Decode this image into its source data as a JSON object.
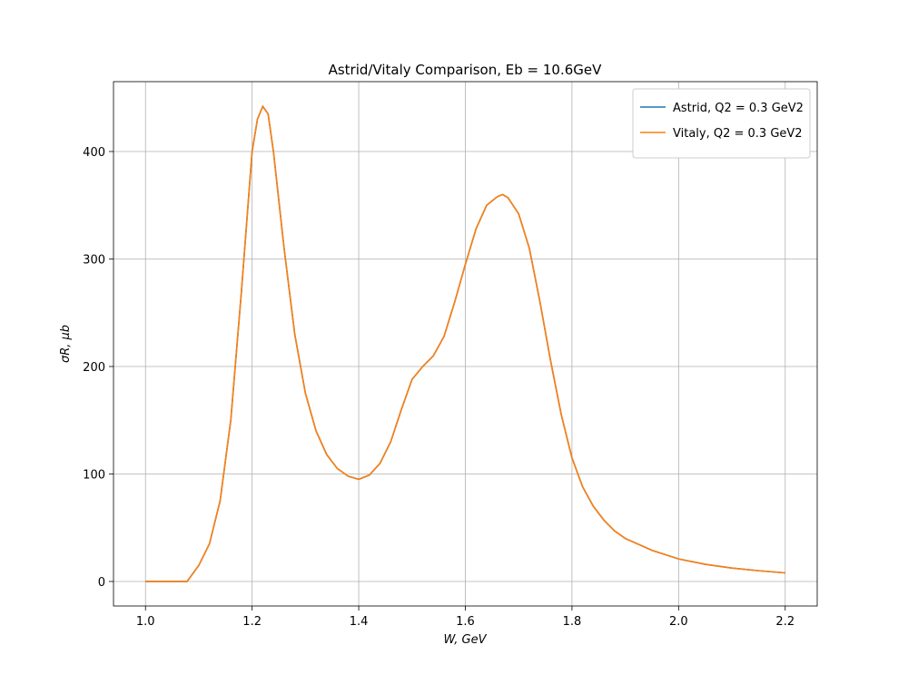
{
  "chart_data": {
    "type": "line",
    "title": "Astrid/Vitaly Comparison, Eb = 10.6GeV",
    "xlabel": "W, GeV",
    "ylabel": "σR, μb",
    "x": [
      1.0,
      1.02,
      1.04,
      1.06,
      1.078,
      1.1,
      1.12,
      1.14,
      1.16,
      1.18,
      1.2,
      1.21,
      1.22,
      1.23,
      1.24,
      1.26,
      1.28,
      1.3,
      1.32,
      1.34,
      1.36,
      1.38,
      1.4,
      1.42,
      1.44,
      1.46,
      1.48,
      1.5,
      1.52,
      1.54,
      1.56,
      1.58,
      1.6,
      1.62,
      1.64,
      1.66,
      1.67,
      1.68,
      1.7,
      1.72,
      1.74,
      1.76,
      1.78,
      1.8,
      1.82,
      1.84,
      1.86,
      1.88,
      1.9,
      1.95,
      2.0,
      2.05,
      2.1,
      2.15,
      2.2
    ],
    "series": [
      {
        "name": "Astrid, Q2 = 0.3 GeV2",
        "color": "#1f77b4",
        "values": [
          0,
          0,
          0,
          0,
          0,
          15,
          35,
          75,
          150,
          270,
          400,
          430,
          442,
          435,
          400,
          310,
          230,
          175,
          140,
          118,
          105,
          98,
          95,
          99,
          110,
          130,
          160,
          188,
          200,
          210,
          228,
          260,
          295,
          328,
          350,
          358,
          360,
          357,
          342,
          310,
          260,
          205,
          155,
          115,
          88,
          70,
          57,
          47,
          40,
          29,
          21,
          16,
          12.5,
          10,
          8
        ]
      },
      {
        "name": "Vitaly, Q2 = 0.3 GeV2",
        "color": "#ff7f0e",
        "values": [
          0,
          0,
          0,
          0,
          0,
          15,
          35,
          75,
          150,
          270,
          400,
          430,
          442,
          435,
          400,
          310,
          230,
          175,
          140,
          118,
          105,
          98,
          95,
          99,
          110,
          130,
          160,
          188,
          200,
          210,
          228,
          260,
          295,
          328,
          350,
          358,
          360,
          357,
          342,
          310,
          260,
          205,
          155,
          115,
          88,
          70,
          57,
          47,
          40,
          29,
          21,
          16,
          12.5,
          10,
          8
        ]
      }
    ],
    "xlim": [
      0.94,
      2.26
    ],
    "ylim": [
      -22.8,
      465
    ],
    "xticks": [
      {
        "value": 1,
        "label": "1.0"
      },
      1.2,
      1.4,
      1.6,
      1.8,
      {
        "value": 2,
        "label": "2.0"
      },
      2.2
    ],
    "yticks": [
      0,
      100,
      200,
      300,
      400
    ],
    "grid": true,
    "legend": "upper-right"
  }
}
